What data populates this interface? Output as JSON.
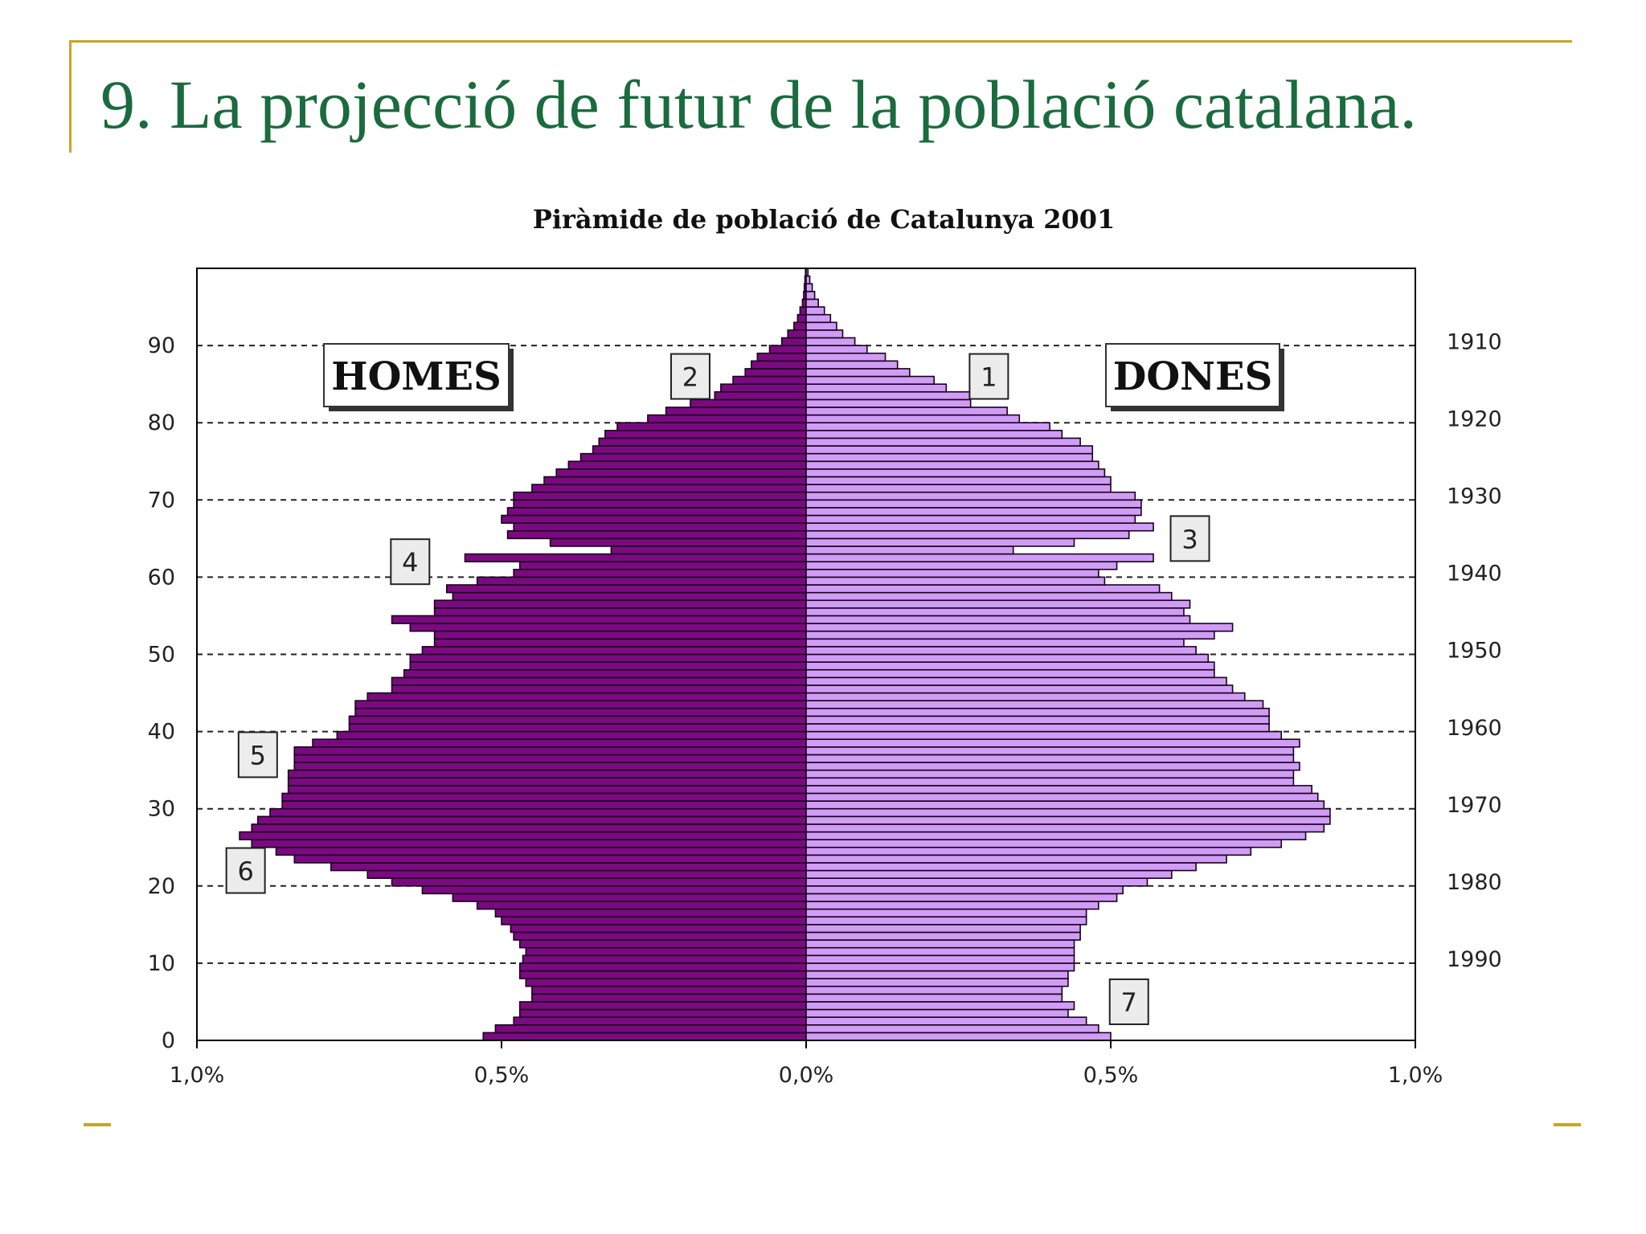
{
  "slide": {
    "title": "9. La projecció de futur de la població catalana."
  },
  "colors": {
    "frame": "#c8a52a",
    "title": "#1a6b3e",
    "men": "#7a0a80",
    "women": "#cf9df5"
  },
  "chart_data": {
    "type": "bar",
    "orientation": "horizontal-pyramid",
    "title": "Piràmide de població de Catalunya 2001",
    "xlabel": "",
    "ylabel": "",
    "xlim": [
      -1.0,
      1.0
    ],
    "ylim": [
      0,
      100
    ],
    "x_ticks": [
      {
        "value": -1.0,
        "label": "1,0%"
      },
      {
        "value": -0.5,
        "label": "0,5%"
      },
      {
        "value": 0.0,
        "label": "0,0%"
      },
      {
        "value": 0.5,
        "label": "0,5%"
      },
      {
        "value": 1.0,
        "label": "1,0%"
      }
    ],
    "y_ticks": [
      {
        "value": 0,
        "label": "0"
      },
      {
        "value": 10,
        "label": "10"
      },
      {
        "value": 20,
        "label": "20"
      },
      {
        "value": 30,
        "label": "30"
      },
      {
        "value": 40,
        "label": "40"
      },
      {
        "value": 50,
        "label": "50"
      },
      {
        "value": 60,
        "label": "60"
      },
      {
        "value": 70,
        "label": "70"
      },
      {
        "value": 80,
        "label": "80"
      },
      {
        "value": 90,
        "label": "90"
      }
    ],
    "birth_years": [
      {
        "age": 1,
        "label": ""
      },
      {
        "age": 10.5,
        "label": "1990"
      },
      {
        "age": 20.5,
        "label": "1980"
      },
      {
        "age": 30.5,
        "label": "1970"
      },
      {
        "age": 40.5,
        "label": "1960"
      },
      {
        "age": 50.5,
        "label": "1950"
      },
      {
        "age": 60.5,
        "label": "1940"
      },
      {
        "age": 70.5,
        "label": "1930"
      },
      {
        "age": 80.5,
        "label": "1920"
      },
      {
        "age": 90.5,
        "label": "1910"
      }
    ],
    "legend_boxes": [
      {
        "label": "HOMES",
        "placement": "upper-left"
      },
      {
        "label": "DONES",
        "placement": "upper-right"
      }
    ],
    "annotations": [
      {
        "label": "1",
        "x": 0.3,
        "age": 86
      },
      {
        "label": "2",
        "x": -0.19,
        "age": 86
      },
      {
        "label": "3",
        "x": 0.63,
        "age": 65
      },
      {
        "label": "4",
        "x": -0.65,
        "age": 62
      },
      {
        "label": "5",
        "x": -0.9,
        "age": 37
      },
      {
        "label": "6",
        "x": -0.92,
        "age": 22
      },
      {
        "label": "7",
        "x": 0.53,
        "age": 5
      }
    ],
    "ages": [
      0,
      1,
      2,
      3,
      4,
      5,
      6,
      7,
      8,
      9,
      10,
      11,
      12,
      13,
      14,
      15,
      16,
      17,
      18,
      19,
      20,
      21,
      22,
      23,
      24,
      25,
      26,
      27,
      28,
      29,
      30,
      31,
      32,
      33,
      34,
      35,
      36,
      37,
      38,
      39,
      40,
      41,
      42,
      43,
      44,
      45,
      46,
      47,
      48,
      49,
      50,
      51,
      52,
      53,
      54,
      55,
      56,
      57,
      58,
      59,
      60,
      61,
      62,
      63,
      64,
      65,
      66,
      67,
      68,
      69,
      70,
      71,
      72,
      73,
      74,
      75,
      76,
      77,
      78,
      79,
      80,
      81,
      82,
      83,
      84,
      85,
      86,
      87,
      88,
      89,
      90,
      91,
      92,
      93,
      94,
      95,
      96,
      97,
      98,
      99
    ],
    "series": [
      {
        "name": "HOMES",
        "values": [
          0.53,
          0.51,
          0.48,
          0.47,
          0.47,
          0.45,
          0.45,
          0.46,
          0.47,
          0.47,
          0.465,
          0.46,
          0.47,
          0.48,
          0.485,
          0.5,
          0.51,
          0.54,
          0.58,
          0.63,
          0.68,
          0.72,
          0.78,
          0.84,
          0.87,
          0.91,
          0.93,
          0.91,
          0.9,
          0.88,
          0.86,
          0.86,
          0.85,
          0.85,
          0.85,
          0.84,
          0.84,
          0.84,
          0.81,
          0.77,
          0.75,
          0.75,
          0.74,
          0.74,
          0.72,
          0.68,
          0.68,
          0.66,
          0.65,
          0.65,
          0.63,
          0.61,
          0.61,
          0.65,
          0.68,
          0.61,
          0.61,
          0.58,
          0.59,
          0.54,
          0.48,
          0.47,
          0.56,
          0.32,
          0.42,
          0.49,
          0.48,
          0.5,
          0.49,
          0.48,
          0.48,
          0.45,
          0.43,
          0.41,
          0.39,
          0.37,
          0.35,
          0.34,
          0.33,
          0.31,
          0.26,
          0.23,
          0.19,
          0.15,
          0.14,
          0.12,
          0.1,
          0.09,
          0.08,
          0.06,
          0.04,
          0.03,
          0.02,
          0.014,
          0.01,
          0.006,
          0.004,
          0.003,
          0.002,
          0.001
        ]
      },
      {
        "name": "DONES",
        "values": [
          0.5,
          0.48,
          0.46,
          0.43,
          0.44,
          0.42,
          0.42,
          0.43,
          0.43,
          0.44,
          0.44,
          0.44,
          0.44,
          0.45,
          0.45,
          0.46,
          0.46,
          0.48,
          0.51,
          0.52,
          0.56,
          0.6,
          0.64,
          0.69,
          0.73,
          0.78,
          0.82,
          0.85,
          0.86,
          0.86,
          0.85,
          0.84,
          0.83,
          0.8,
          0.8,
          0.81,
          0.8,
          0.8,
          0.81,
          0.78,
          0.76,
          0.76,
          0.76,
          0.75,
          0.72,
          0.7,
          0.69,
          0.67,
          0.67,
          0.66,
          0.64,
          0.62,
          0.67,
          0.7,
          0.63,
          0.62,
          0.63,
          0.6,
          0.58,
          0.49,
          0.48,
          0.51,
          0.57,
          0.34,
          0.44,
          0.53,
          0.57,
          0.54,
          0.55,
          0.55,
          0.54,
          0.5,
          0.5,
          0.49,
          0.48,
          0.47,
          0.47,
          0.45,
          0.42,
          0.4,
          0.35,
          0.33,
          0.27,
          0.27,
          0.23,
          0.21,
          0.17,
          0.15,
          0.13,
          0.1,
          0.08,
          0.06,
          0.05,
          0.04,
          0.03,
          0.02,
          0.014,
          0.01,
          0.006,
          0.003
        ]
      }
    ]
  }
}
